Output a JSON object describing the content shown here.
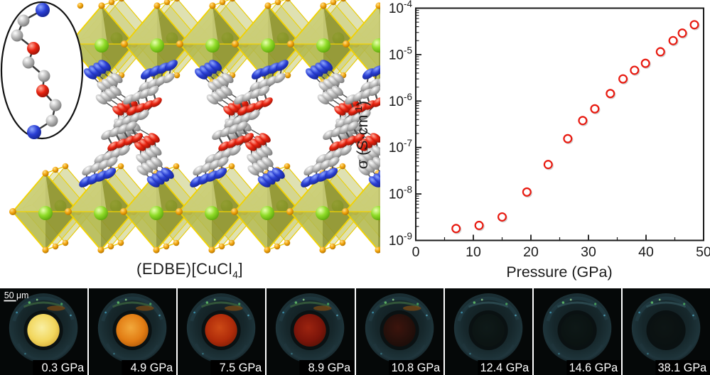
{
  "structure_panel": {
    "formula": {
      "prefix": "(EDBE)[CuCl",
      "subscript": "4",
      "suffix": "]"
    },
    "inset_molecule": {
      "atom_sequence": [
        "N",
        "C",
        "C",
        "O",
        "C",
        "C",
        "O",
        "C",
        "C",
        "N"
      ]
    },
    "atom_colors": {
      "Cu": "#7cd622",
      "Cl": "#f2a40c",
      "C": "#9a9a9a",
      "N": "#2a3fd4",
      "O": "#e82310"
    },
    "octahedra_face_color": "#9aa03a",
    "octahedra_edge_color": "#f2d200"
  },
  "chart_data": {
    "type": "scatter",
    "series": [
      {
        "name": "conductivity",
        "marker": "open-circle",
        "color": "#e8190f"
      }
    ],
    "x": [
      7,
      11,
      15,
      19.3,
      23,
      26.4,
      29,
      31.1,
      33.8,
      36,
      38,
      39.9,
      42.5,
      44.7,
      46.3,
      48.4
    ],
    "y": [
      1.8e-09,
      2.1e-09,
      3.2e-09,
      1.1e-08,
      4.3e-08,
      1.55e-07,
      3.8e-07,
      6.8e-07,
      1.45e-06,
      3e-06,
      4.6e-06,
      6.5e-06,
      1.15e-05,
      2e-05,
      2.9e-05,
      4.4e-05
    ],
    "xlabel": "Pressure (GPa)",
    "ylabel_prefix": "σ (S·cm",
    "ylabel_exponent": "-1",
    "ylabel_suffix": ")",
    "xlim": [
      0,
      50
    ],
    "xticks": [
      0,
      10,
      20,
      30,
      40,
      50
    ],
    "x_minor_step": 5,
    "ylim": [
      1e-09,
      0.0001
    ],
    "y_exponents": [
      -9,
      -8,
      -7,
      -6,
      -5,
      -4
    ],
    "y_base": "10",
    "grid": false,
    "legend": "none"
  },
  "micrographs": {
    "scale_bar_label": "50 μm",
    "panels": [
      {
        "label": "0.3 GPa",
        "sample_core": "#f9efa2",
        "sample_mid": "#f2d75e",
        "sample_edge": "#cf9f28"
      },
      {
        "label": "4.9 GPa",
        "sample_core": "#f2a93c",
        "sample_mid": "#e27d14",
        "sample_edge": "#9d4c06"
      },
      {
        "label": "7.5 GPa",
        "sample_core": "#cc4a16",
        "sample_mid": "#b02c0a",
        "sample_edge": "#6e1804"
      },
      {
        "label": "8.9 GPa",
        "sample_core": "#9c2410",
        "sample_mid": "#7c150a",
        "sample_edge": "#461004"
      },
      {
        "label": "10.8 GPa",
        "sample_core": "#3c140d",
        "sample_mid": "#26100b",
        "sample_edge": "#140b08"
      },
      {
        "label": "12.4 GPa",
        "sample_core": "#0f1a19",
        "sample_mid": "#0c1514",
        "sample_edge": "#0b1211"
      },
      {
        "label": "14.6 GPa",
        "sample_core": "#0e1817",
        "sample_mid": "#0b1413",
        "sample_edge": "#0a1110"
      },
      {
        "label": "38.1 GPa",
        "sample_core": "#0d1514",
        "sample_mid": "#0b1212",
        "sample_edge": "#091010"
      }
    ]
  }
}
